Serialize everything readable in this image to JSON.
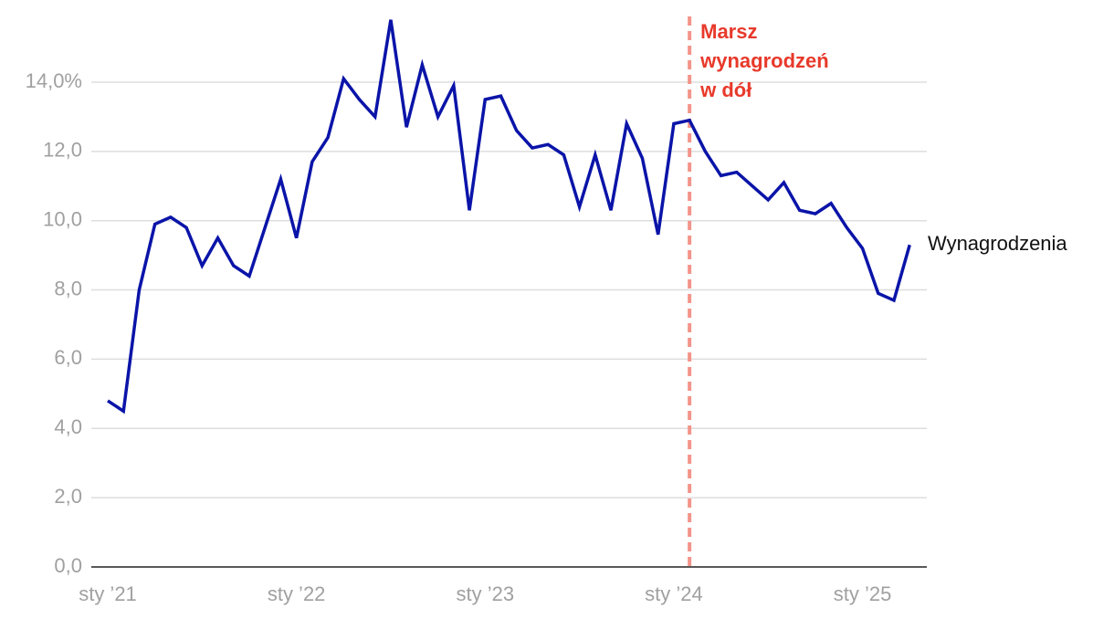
{
  "chart_data": {
    "type": "line",
    "categories": [
      "sty ’21",
      null,
      null,
      null,
      null,
      null,
      null,
      null,
      null,
      null,
      null,
      null,
      "sty ’22",
      null,
      null,
      null,
      null,
      null,
      null,
      null,
      null,
      null,
      null,
      null,
      "sty ’23",
      null,
      null,
      null,
      null,
      null,
      null,
      null,
      null,
      null,
      null,
      null,
      "sty ’24",
      null,
      null,
      null,
      null,
      null,
      null,
      null,
      null,
      null,
      null,
      null,
      "sty ’25",
      null,
      null,
      null
    ],
    "series": [
      {
        "name": "Wynagrodzenia",
        "color": "#0a14a8",
        "values": [
          4.8,
          4.5,
          8.0,
          9.9,
          10.1,
          9.8,
          8.7,
          9.5,
          8.7,
          8.4,
          9.8,
          11.2,
          9.5,
          11.7,
          12.4,
          14.1,
          13.5,
          13.0,
          15.8,
          12.7,
          14.5,
          13.0,
          13.9,
          10.3,
          13.5,
          13.6,
          12.6,
          12.1,
          12.2,
          11.9,
          10.4,
          11.9,
          10.3,
          12.8,
          11.8,
          9.6,
          12.8,
          12.9,
          12.0,
          11.3,
          11.4,
          11.0,
          10.6,
          11.1,
          10.3,
          10.2,
          10.5,
          9.8,
          9.2,
          7.9,
          7.7,
          9.3
        ]
      }
    ],
    "ylim": [
      0,
      16
    ],
    "yticks": [
      {
        "value": 0,
        "label": "0,0"
      },
      {
        "value": 2,
        "label": "2,0"
      },
      {
        "value": 4,
        "label": "4,0"
      },
      {
        "value": 6,
        "label": "6,0"
      },
      {
        "value": 8,
        "label": "8,0"
      },
      {
        "value": 10,
        "label": "10,0"
      },
      {
        "value": 12,
        "label": "12,0"
      },
      {
        "value": 14,
        "label": "14,0%"
      }
    ],
    "grid": true,
    "annotation": [
      "Marsz",
      "wynagrodzeń",
      "w dół"
    ],
    "annotation_color": "#f4948a"
  }
}
